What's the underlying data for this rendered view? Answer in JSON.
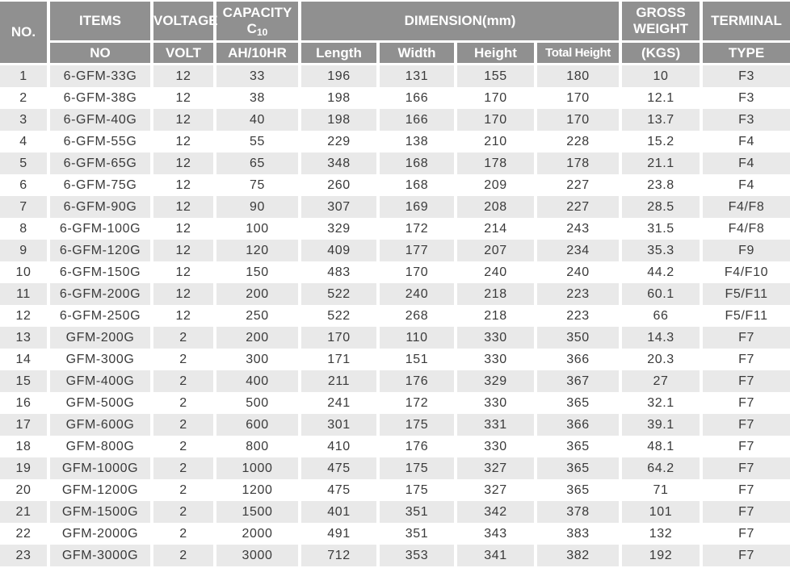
{
  "colors": {
    "header_bg": "#909090",
    "header_text": "#ffffff",
    "row_stripe_bg": "#e9e9e9",
    "row_plain_bg": "#ffffff",
    "data_text": "#3a3a3a"
  },
  "table": {
    "header": {
      "no": "NO.",
      "items_top": "ITEMS",
      "items_sub": "NO",
      "voltage_top": "VOLTAGE",
      "voltage_sub": "VOLT",
      "capacity_line1": "CAPACITY",
      "capacity_c": "C",
      "capacity_c_sub": "10",
      "capacity_sub": "AH/10HR",
      "dimension_top": "DIMENSION(mm)",
      "dimension_subs": [
        "Length",
        "Width",
        "Height",
        "Total Height"
      ],
      "gross_top": "GROSS WEIGHT",
      "gross_sub": "(KGS)",
      "terminal_top": "TERMINAL",
      "terminal_sub": "TYPE"
    },
    "rows": [
      [
        "1",
        "6-GFM-33G",
        "12",
        "33",
        "196",
        "131",
        "155",
        "180",
        "10",
        "F3"
      ],
      [
        "2",
        "6-GFM-38G",
        "12",
        "38",
        "198",
        "166",
        "170",
        "170",
        "12.1",
        "F3"
      ],
      [
        "3",
        "6-GFM-40G",
        "12",
        "40",
        "198",
        "166",
        "170",
        "170",
        "13.7",
        "F3"
      ],
      [
        "4",
        "6-GFM-55G",
        "12",
        "55",
        "229",
        "138",
        "210",
        "228",
        "15.2",
        "F4"
      ],
      [
        "5",
        "6-GFM-65G",
        "12",
        "65",
        "348",
        "168",
        "178",
        "178",
        "21.1",
        "F4"
      ],
      [
        "6",
        "6-GFM-75G",
        "12",
        "75",
        "260",
        "168",
        "209",
        "227",
        "23.8",
        "F4"
      ],
      [
        "7",
        "6-GFM-90G",
        "12",
        "90",
        "307",
        "169",
        "208",
        "227",
        "28.5",
        "F4/F8"
      ],
      [
        "8",
        "6-GFM-100G",
        "12",
        "100",
        "329",
        "172",
        "214",
        "243",
        "31.5",
        "F4/F8"
      ],
      [
        "9",
        "6-GFM-120G",
        "12",
        "120",
        "409",
        "177",
        "207",
        "234",
        "35.3",
        "F9"
      ],
      [
        "10",
        "6-GFM-150G",
        "12",
        "150",
        "483",
        "170",
        "240",
        "240",
        "44.2",
        "F4/F10"
      ],
      [
        "11",
        "6-GFM-200G",
        "12",
        "200",
        "522",
        "240",
        "218",
        "223",
        "60.1",
        "F5/F11"
      ],
      [
        "12",
        "6-GFM-250G",
        "12",
        "250",
        "522",
        "268",
        "218",
        "223",
        "66",
        "F5/F11"
      ],
      [
        "13",
        "GFM-200G",
        "2",
        "200",
        "170",
        "110",
        "330",
        "350",
        "14.3",
        "F7"
      ],
      [
        "14",
        "GFM-300G",
        "2",
        "300",
        "171",
        "151",
        "330",
        "366",
        "20.3",
        "F7"
      ],
      [
        "15",
        "GFM-400G",
        "2",
        "400",
        "211",
        "176",
        "329",
        "367",
        "27",
        "F7"
      ],
      [
        "16",
        "GFM-500G",
        "2",
        "500",
        "241",
        "172",
        "330",
        "365",
        "32.1",
        "F7"
      ],
      [
        "17",
        "GFM-600G",
        "2",
        "600",
        "301",
        "175",
        "331",
        "366",
        "39.1",
        "F7"
      ],
      [
        "18",
        "GFM-800G",
        "2",
        "800",
        "410",
        "176",
        "330",
        "365",
        "48.1",
        "F7"
      ],
      [
        "19",
        "GFM-1000G",
        "2",
        "1000",
        "475",
        "175",
        "327",
        "365",
        "64.2",
        "F7"
      ],
      [
        "20",
        "GFM-1200G",
        "2",
        "1200",
        "475",
        "175",
        "327",
        "365",
        "71",
        "F7"
      ],
      [
        "21",
        "GFM-1500G",
        "2",
        "1500",
        "401",
        "351",
        "342",
        "378",
        "101",
        "F7"
      ],
      [
        "22",
        "GFM-2000G",
        "2",
        "2000",
        "491",
        "351",
        "343",
        "383",
        "132",
        "F7"
      ],
      [
        "23",
        "GFM-3000G",
        "2",
        "3000",
        "712",
        "353",
        "341",
        "382",
        "192",
        "F7"
      ]
    ]
  }
}
